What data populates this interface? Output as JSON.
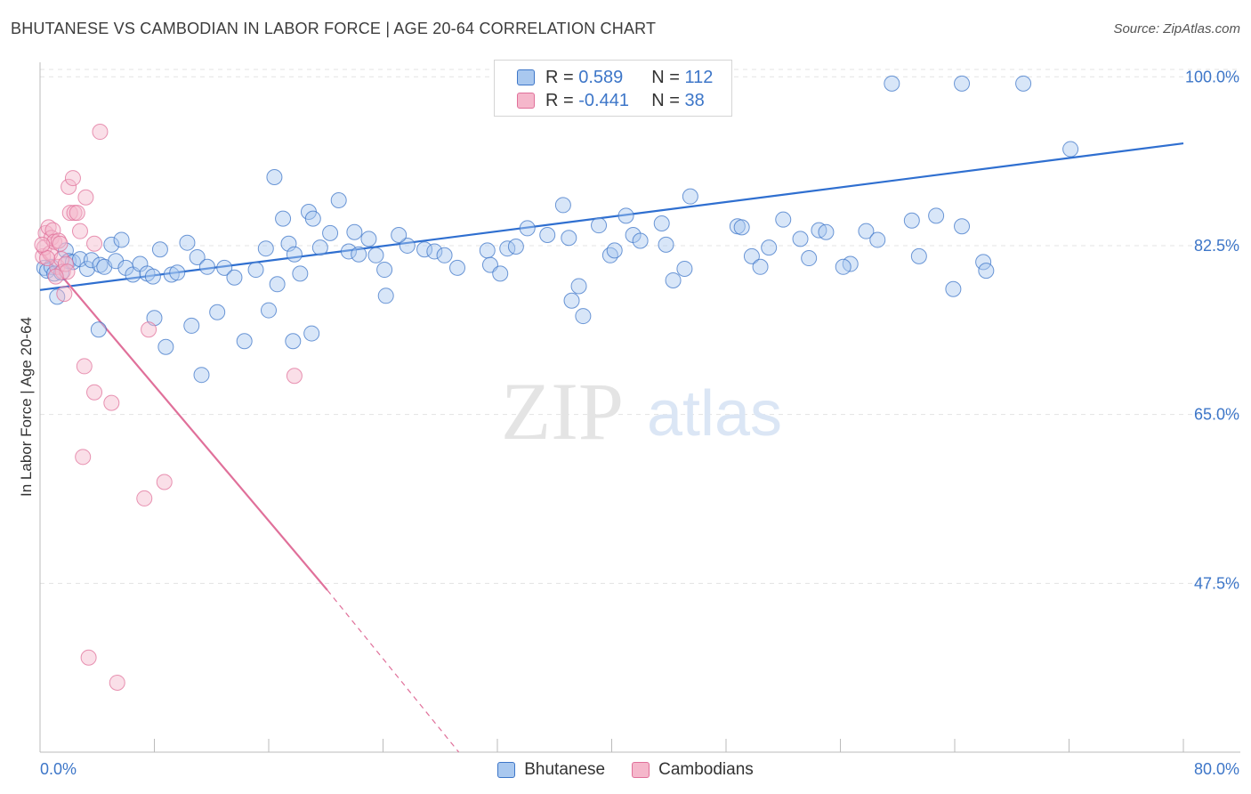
{
  "title": "BHUTANESE VS CAMBODIAN IN LABOR FORCE | AGE 20-64 CORRELATION CHART",
  "source": "Source: ZipAtlas.com",
  "watermark": {
    "zip": "ZIP",
    "atlas": "atlas"
  },
  "colors": {
    "blue": "#3d76c8",
    "blue_fill": "#a9c8ef",
    "blue_line": "#2f6fd0",
    "pink": "#e0709a",
    "pink_fill": "#f5b7cb",
    "pink_line": "#e0709a",
    "grid": "#e3e3e3",
    "axis": "#bbbbbb"
  },
  "legend": {
    "rows": [
      {
        "r_label": "R = ",
        "r_value": "0.589",
        "n_label": "N = ",
        "n_value": "112",
        "color": "blue"
      },
      {
        "r_label": "R = ",
        "r_value": "-0.441",
        "n_label": "N = ",
        "n_value": "38",
        "color": "pink"
      }
    ]
  },
  "bottom_legend": [
    {
      "label": "Bhutanese",
      "color": "blue"
    },
    {
      "label": "Cambodians",
      "color": "pink"
    }
  ],
  "chart_data": {
    "type": "scatter",
    "title": "BHUTANESE VS CAMBODIAN IN LABOR FORCE | AGE 20-64 CORRELATION CHART",
    "xlabel": "",
    "ylabel": "In Labor Force | Age 20-64",
    "xlim": [
      0,
      80
    ],
    "ylim": [
      30,
      101.5
    ],
    "x_tick_labels": [
      {
        "value": 0,
        "label": "0.0%"
      },
      {
        "value": 80,
        "label": "80.0%"
      }
    ],
    "y_tick_labels": [
      {
        "value": 100,
        "label": "100.0%"
      },
      {
        "value": 82.5,
        "label": "82.5%"
      },
      {
        "value": 65,
        "label": "65.0%"
      },
      {
        "value": 47.5,
        "label": "47.5%"
      }
    ],
    "grid": true,
    "legend_position": "top-center",
    "series": [
      {
        "name": "Bhutanese",
        "color": "blue",
        "r": 0.589,
        "n": 112,
        "trend": {
          "x0": 0,
          "y0": 77.9,
          "x1": 80,
          "y1": 93.1,
          "dashed_to": null
        },
        "points": [
          [
            0.3,
            80.2
          ],
          [
            0.5,
            79.9
          ],
          [
            0.8,
            80.3
          ],
          [
            1.0,
            79.6
          ],
          [
            1.5,
            79.7
          ],
          [
            1.8,
            82.0
          ],
          [
            2.0,
            80.9
          ],
          [
            2.3,
            80.8
          ],
          [
            2.8,
            81.1
          ],
          [
            3.3,
            80.1
          ],
          [
            3.6,
            81.0
          ],
          [
            4.2,
            80.5
          ],
          [
            4.5,
            80.3
          ],
          [
            5.0,
            82.6
          ],
          [
            5.3,
            80.9
          ],
          [
            5.7,
            83.1
          ],
          [
            6.0,
            80.2
          ],
          [
            6.5,
            79.5
          ],
          [
            7.0,
            80.6
          ],
          [
            7.5,
            79.6
          ],
          [
            7.9,
            79.3
          ],
          [
            8.4,
            82.1
          ],
          [
            9.2,
            79.5
          ],
          [
            9.6,
            79.7
          ],
          [
            10.3,
            82.8
          ],
          [
            11.0,
            81.3
          ],
          [
            11.7,
            80.3
          ],
          [
            12.9,
            80.2
          ],
          [
            13.6,
            79.2
          ],
          [
            15.1,
            80.0
          ],
          [
            15.8,
            82.2
          ],
          [
            16.6,
            78.5
          ],
          [
            16.4,
            89.6
          ],
          [
            17.0,
            85.3
          ],
          [
            17.4,
            82.7
          ],
          [
            17.8,
            81.6
          ],
          [
            18.2,
            79.6
          ],
          [
            18.8,
            86.0
          ],
          [
            19.1,
            85.3
          ],
          [
            19.6,
            82.3
          ],
          [
            20.3,
            83.8
          ],
          [
            20.9,
            87.2
          ],
          [
            21.6,
            81.9
          ],
          [
            22.0,
            83.9
          ],
          [
            22.3,
            81.6
          ],
          [
            23.0,
            83.2
          ],
          [
            23.5,
            81.5
          ],
          [
            24.1,
            80.0
          ],
          [
            24.2,
            77.3
          ],
          [
            25.7,
            82.5
          ],
          [
            25.1,
            83.6
          ],
          [
            26.9,
            82.1
          ],
          [
            27.6,
            81.9
          ],
          [
            28.3,
            81.5
          ],
          [
            29.2,
            80.2
          ],
          [
            31.3,
            82.0
          ],
          [
            31.5,
            80.5
          ],
          [
            32.2,
            79.6
          ],
          [
            32.7,
            82.2
          ],
          [
            33.3,
            82.4
          ],
          [
            34.1,
            84.3
          ],
          [
            35.5,
            83.6
          ],
          [
            37.0,
            83.3
          ],
          [
            37.7,
            78.3
          ],
          [
            37.2,
            76.8
          ],
          [
            36.6,
            86.7
          ],
          [
            38.0,
            75.2
          ],
          [
            39.1,
            84.6
          ],
          [
            39.9,
            81.5
          ],
          [
            40.2,
            82.0
          ],
          [
            41.0,
            85.6
          ],
          [
            41.5,
            83.6
          ],
          [
            42.0,
            83.0
          ],
          [
            43.5,
            84.8
          ],
          [
            43.8,
            82.6
          ],
          [
            45.1,
            80.1
          ],
          [
            44.3,
            78.9
          ],
          [
            45.5,
            87.6
          ],
          [
            48.8,
            84.5
          ],
          [
            49.1,
            84.4
          ],
          [
            49.8,
            81.4
          ],
          [
            50.4,
            80.3
          ],
          [
            51.0,
            82.3
          ],
          [
            52.0,
            85.2
          ],
          [
            53.2,
            83.2
          ],
          [
            53.8,
            81.2
          ],
          [
            54.5,
            84.1
          ],
          [
            55.0,
            83.9
          ],
          [
            56.7,
            80.6
          ],
          [
            56.2,
            80.3
          ],
          [
            57.8,
            84.0
          ],
          [
            58.6,
            83.1
          ],
          [
            61.0,
            85.1
          ],
          [
            61.5,
            81.4
          ],
          [
            62.7,
            85.6
          ],
          [
            63.9,
            78.0
          ],
          [
            64.5,
            84.5
          ],
          [
            66.0,
            80.8
          ],
          [
            66.2,
            79.9
          ],
          [
            72.1,
            92.5
          ],
          [
            59.6,
            99.3
          ],
          [
            64.5,
            99.3
          ],
          [
            68.8,
            99.3
          ],
          [
            1.2,
            77.2
          ],
          [
            4.1,
            73.8
          ],
          [
            8.0,
            75.0
          ],
          [
            8.8,
            72.0
          ],
          [
            10.6,
            74.2
          ],
          [
            11.3,
            69.1
          ],
          [
            12.4,
            75.6
          ],
          [
            14.3,
            72.6
          ],
          [
            16.0,
            75.8
          ],
          [
            17.7,
            72.6
          ],
          [
            19.0,
            73.4
          ]
        ]
      },
      {
        "name": "Cambodians",
        "color": "pink",
        "r": -0.441,
        "n": 38,
        "trend": {
          "x0": 0,
          "y0": 82.0,
          "x1": 20.1,
          "y1": 46.8,
          "dashed_to": {
            "x": 29.3,
            "y": 30.0
          }
        },
        "points": [
          [
            0.2,
            81.4
          ],
          [
            0.3,
            82.3
          ],
          [
            0.4,
            83.8
          ],
          [
            0.6,
            84.4
          ],
          [
            0.7,
            81.7
          ],
          [
            0.8,
            83.3
          ],
          [
            0.9,
            84.1
          ],
          [
            1.0,
            82.9
          ],
          [
            1.2,
            80.3
          ],
          [
            1.3,
            83.0
          ],
          [
            1.4,
            82.7
          ],
          [
            1.5,
            81.1
          ],
          [
            1.6,
            79.8
          ],
          [
            1.7,
            77.5
          ],
          [
            1.8,
            80.6
          ],
          [
            1.9,
            79.8
          ],
          [
            2.0,
            88.6
          ],
          [
            2.1,
            85.9
          ],
          [
            2.3,
            89.5
          ],
          [
            2.4,
            85.9
          ],
          [
            2.6,
            85.9
          ],
          [
            2.8,
            84.0
          ],
          [
            3.2,
            87.5
          ],
          [
            3.8,
            82.7
          ],
          [
            4.2,
            94.3
          ],
          [
            3.0,
            60.6
          ],
          [
            3.1,
            70.0
          ],
          [
            3.8,
            67.3
          ],
          [
            5.0,
            66.2
          ],
          [
            7.3,
            56.3
          ],
          [
            8.7,
            58.0
          ],
          [
            7.6,
            73.8
          ],
          [
            17.8,
            69.0
          ],
          [
            1.1,
            79.3
          ],
          [
            0.5,
            81.2
          ],
          [
            3.4,
            39.8
          ],
          [
            5.4,
            37.2
          ],
          [
            0.15,
            82.6
          ]
        ]
      }
    ]
  }
}
